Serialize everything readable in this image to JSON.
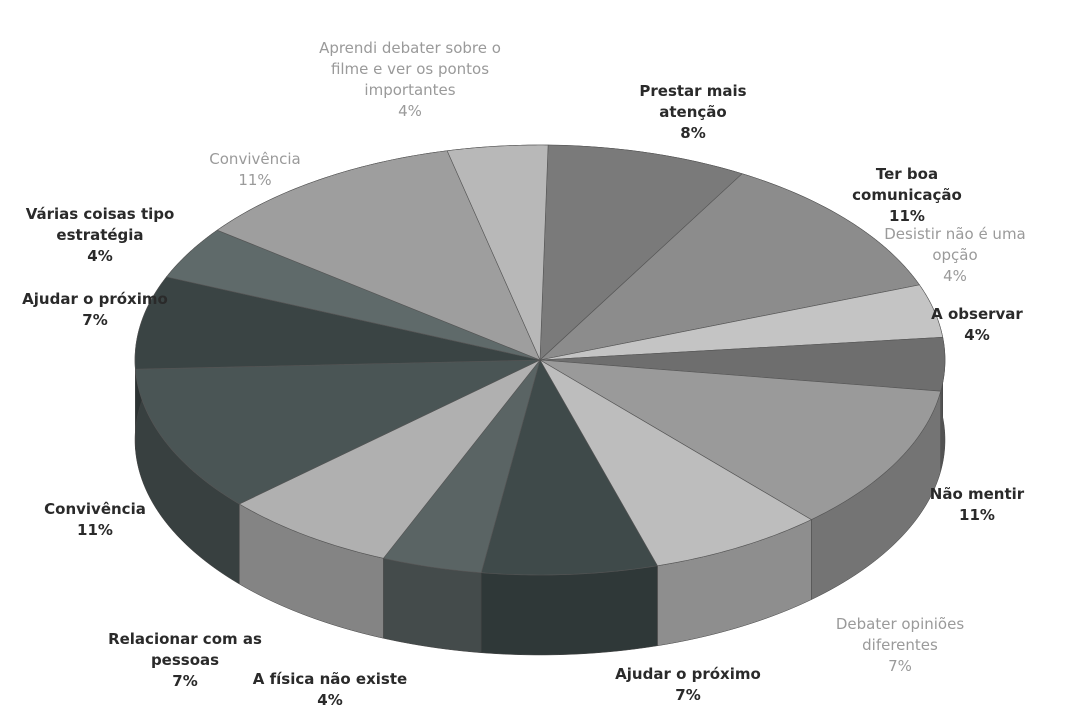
{
  "chart_data": {
    "type": "pie",
    "categories": [
      "Prestar mais atenção",
      "Ter boa comunicação",
      "Desistir não é uma opção",
      "A observar",
      "Não mentir",
      "Debater opiniões diferentes",
      "Ajudar o próximo",
      "A física não existe",
      "Relacionar com as pessoas",
      "Convivência",
      "Ajudar o próximo",
      "Várias coisas tipo estratégia",
      "Convivência",
      "Aprendi debater sobre o filme e ver os pontos importantes"
    ],
    "values": [
      8,
      11,
      4,
      4,
      11,
      7,
      7,
      4,
      7,
      11,
      7,
      4,
      11,
      4
    ],
    "value_labels": [
      "8%",
      "11%",
      "4%",
      "4%",
      "11%",
      "7%",
      "7%",
      "4%",
      "7%",
      "11%",
      "7%",
      "4%",
      "11%",
      "4%"
    ],
    "colors": [
      "#7a7a7a",
      "#8c8c8c",
      "#c4c4c4",
      "#6e6e6e",
      "#9a9a9a",
      "#bdbdbd",
      "#3f4a4a",
      "#5a6464",
      "#b0b0b0",
      "#4a5555",
      "#3a4444",
      "#5f6a6a",
      "#9e9e9e",
      "#b8b8b8"
    ]
  }
}
